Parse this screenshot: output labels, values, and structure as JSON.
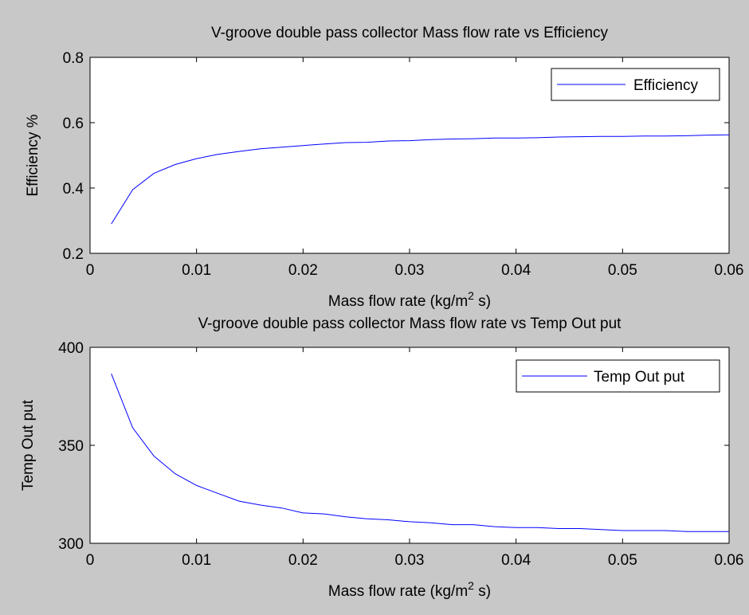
{
  "chart_data": [
    {
      "type": "line",
      "title": "V-groove double pass collector Mass flow rate vs Efficiency",
      "xlabel": "Mass flow rate (kg/m",
      "xlabel_sup": "2",
      "xlabel_tail": " s)",
      "ylabel": "Efficiency %",
      "xlim": [
        0,
        0.06
      ],
      "ylim": [
        0.2,
        0.8
      ],
      "xticks": [
        0,
        0.01,
        0.02,
        0.03,
        0.04,
        0.05,
        0.06
      ],
      "xtick_labels": [
        "0",
        "0.01",
        "0.02",
        "0.03",
        "0.04",
        "0.05",
        "0.06"
      ],
      "yticks": [
        0.2,
        0.4,
        0.6,
        0.8
      ],
      "ytick_labels": [
        "0.2",
        "0.4",
        "0.6",
        "0.8"
      ],
      "grid": false,
      "legend": "top-right",
      "series": [
        {
          "name": "Efficiency",
          "color": "#0000ff",
          "x": [
            0.002,
            0.004,
            0.006,
            0.008,
            0.01,
            0.012,
            0.014,
            0.016,
            0.018,
            0.02,
            0.022,
            0.024,
            0.026,
            0.028,
            0.03,
            0.032,
            0.034,
            0.036,
            0.038,
            0.04,
            0.042,
            0.044,
            0.046,
            0.048,
            0.05,
            0.052,
            0.054,
            0.056,
            0.058,
            0.06
          ],
          "y": [
            0.29,
            0.395,
            0.445,
            0.472,
            0.49,
            0.503,
            0.512,
            0.52,
            0.525,
            0.53,
            0.535,
            0.539,
            0.54,
            0.544,
            0.545,
            0.548,
            0.55,
            0.551,
            0.553,
            0.553,
            0.554,
            0.556,
            0.557,
            0.558,
            0.558,
            0.559,
            0.559,
            0.56,
            0.562,
            0.563
          ]
        }
      ]
    },
    {
      "type": "line",
      "title": "V-groove double pass collector Mass flow rate vs Temp Out put",
      "xlabel": "Mass flow rate (kg/m",
      "xlabel_sup": "2",
      "xlabel_tail": " s)",
      "ylabel": "Temp Out put",
      "xlim": [
        0,
        0.06
      ],
      "ylim": [
        300,
        400
      ],
      "xticks": [
        0,
        0.01,
        0.02,
        0.03,
        0.04,
        0.05,
        0.06
      ],
      "xtick_labels": [
        "0",
        "0.01",
        "0.02",
        "0.03",
        "0.04",
        "0.05",
        "0.06"
      ],
      "yticks": [
        300,
        350,
        400
      ],
      "ytick_labels": [
        "300",
        "350",
        "400"
      ],
      "grid": false,
      "legend": "top-right",
      "series": [
        {
          "name": "Temp Out put",
          "color": "#0000ff",
          "x": [
            0.002,
            0.004,
            0.006,
            0.008,
            0.01,
            0.012,
            0.014,
            0.016,
            0.018,
            0.02,
            0.022,
            0.024,
            0.026,
            0.028,
            0.03,
            0.032,
            0.034,
            0.036,
            0.038,
            0.04,
            0.042,
            0.044,
            0.046,
            0.048,
            0.05,
            0.052,
            0.054,
            0.056,
            0.058,
            0.06
          ],
          "y": [
            386.5,
            359,
            344.5,
            335.5,
            329.5,
            325.5,
            321.5,
            319.5,
            318,
            315.5,
            315,
            313.5,
            312.5,
            312,
            311,
            310.5,
            309.5,
            309.5,
            308.5,
            308,
            308,
            307.5,
            307.5,
            307,
            306.5,
            306.5,
            306.5,
            306,
            306,
            306
          ]
        }
      ]
    }
  ]
}
